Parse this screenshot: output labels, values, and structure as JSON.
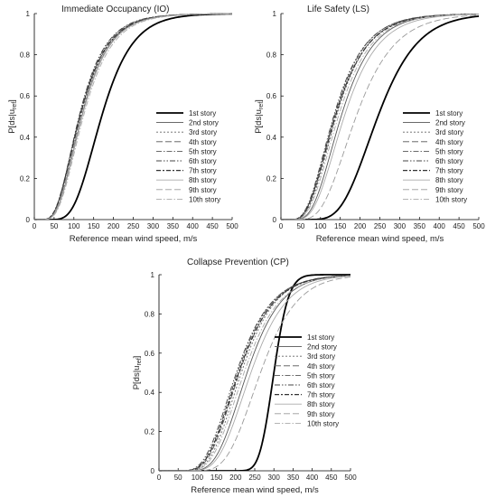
{
  "chart_data": [
    {
      "type": "line",
      "title": "Immediate Occupancy (IO)",
      "xlabel": "Reference mean wind speed, m/s",
      "ylabel": "P[ds|u",
      "ylabel_sub": "ref",
      "ylabel_end": "]",
      "xlim": [
        0,
        500
      ],
      "ylim": [
        0,
        1
      ],
      "xticks": [
        "0",
        "50",
        "100",
        "150",
        "200",
        "250",
        "300",
        "350",
        "400",
        "450",
        "500"
      ],
      "yticks": [
        "0",
        "0.2",
        "0.4",
        "0.6",
        "0.8",
        "1"
      ],
      "legend_position": "center-right",
      "series": [
        {
          "name": "1st story",
          "style": "solid-bold",
          "median": 170,
          "beta": 0.36
        },
        {
          "name": "2nd story",
          "style": "solid",
          "median": 120,
          "beta": 0.45
        },
        {
          "name": "3rd story",
          "style": "dotted",
          "median": 118,
          "beta": 0.45
        },
        {
          "name": "4th story",
          "style": "long-dash",
          "median": 116,
          "beta": 0.46
        },
        {
          "name": "5th story",
          "style": "dash-dot",
          "median": 114,
          "beta": 0.46
        },
        {
          "name": "6th story",
          "style": "dash-dot-dot",
          "median": 113,
          "beta": 0.46
        },
        {
          "name": "7th story",
          "style": "dash-dot-bold",
          "median": 115,
          "beta": 0.47
        },
        {
          "name": "8th story",
          "style": "solid-light",
          "median": 121,
          "beta": 0.45
        },
        {
          "name": "9th story",
          "style": "dash-light",
          "median": 119,
          "beta": 0.46
        },
        {
          "name": "10th story",
          "style": "dash-dot-light",
          "median": 124,
          "beta": 0.45
        }
      ]
    },
    {
      "type": "line",
      "title": "Life Safety (LS)",
      "xlabel": "Reference mean wind speed, m/s",
      "ylabel": "P[ds|u",
      "ylabel_sub": "ref",
      "ylabel_end": "]",
      "xlim": [
        0,
        500
      ],
      "ylim": [
        0,
        1
      ],
      "xticks": [
        "0",
        "50",
        "100",
        "150",
        "200",
        "250",
        "300",
        "350",
        "400",
        "450",
        "500"
      ],
      "yticks": [
        "0",
        "0.2",
        "0.4",
        "0.6",
        "0.8",
        "1"
      ],
      "legend_position": "center-right",
      "series": [
        {
          "name": "1st story",
          "style": "solid-bold",
          "median": 245,
          "beta": 0.32
        },
        {
          "name": "2nd story",
          "style": "solid",
          "median": 152,
          "beta": 0.42
        },
        {
          "name": "3rd story",
          "style": "dotted",
          "median": 140,
          "beta": 0.44
        },
        {
          "name": "4th story",
          "style": "long-dash",
          "median": 138,
          "beta": 0.45
        },
        {
          "name": "5th story",
          "style": "dash-dot",
          "median": 135,
          "beta": 0.45
        },
        {
          "name": "6th story",
          "style": "dash-dot-dot",
          "median": 133,
          "beta": 0.46
        },
        {
          "name": "7th story",
          "style": "dash-dot-bold",
          "median": 137,
          "beta": 0.46
        },
        {
          "name": "8th story",
          "style": "solid-light",
          "median": 160,
          "beta": 0.42
        },
        {
          "name": "9th story",
          "style": "dash-light",
          "median": 190,
          "beta": 0.4
        },
        {
          "name": "10th story",
          "style": "dash-dot-light",
          "median": 145,
          "beta": 0.44
        }
      ]
    },
    {
      "type": "line",
      "title": "Collapse Prevention (CP)",
      "xlabel": "Reference mean wind speed, m/s",
      "ylabel": "P[ds|u",
      "ylabel_sub": "ref",
      "ylabel_end": "]",
      "xlim": [
        0,
        500
      ],
      "ylim": [
        0,
        1
      ],
      "xticks": [
        "0",
        "50",
        "100",
        "150",
        "200",
        "250",
        "300",
        "350",
        "400",
        "450",
        "500"
      ],
      "yticks": [
        "0",
        "0.2",
        "0.4",
        "0.6",
        "0.8",
        "1"
      ],
      "legend_position": "center-right",
      "series": [
        {
          "name": "1st story",
          "style": "solid-bold",
          "median": 300,
          "beta": 0.1
        },
        {
          "name": "2nd story",
          "style": "solid",
          "median": 230,
          "beta": 0.3
        },
        {
          "name": "3rd story",
          "style": "dotted",
          "median": 215,
          "beta": 0.32
        },
        {
          "name": "4th story",
          "style": "long-dash",
          "median": 210,
          "beta": 0.33
        },
        {
          "name": "5th story",
          "style": "dash-dot",
          "median": 205,
          "beta": 0.34
        },
        {
          "name": "6th story",
          "style": "dash-dot-dot",
          "median": 202,
          "beta": 0.35
        },
        {
          "name": "7th story",
          "style": "dash-dot-bold",
          "median": 208,
          "beta": 0.34
        },
        {
          "name": "8th story",
          "style": "solid-light",
          "median": 240,
          "beta": 0.3
        },
        {
          "name": "9th story",
          "style": "dash-light",
          "median": 265,
          "beta": 0.28
        },
        {
          "name": "10th story",
          "style": "dash-dot-light",
          "median": 222,
          "beta": 0.32
        }
      ]
    }
  ]
}
